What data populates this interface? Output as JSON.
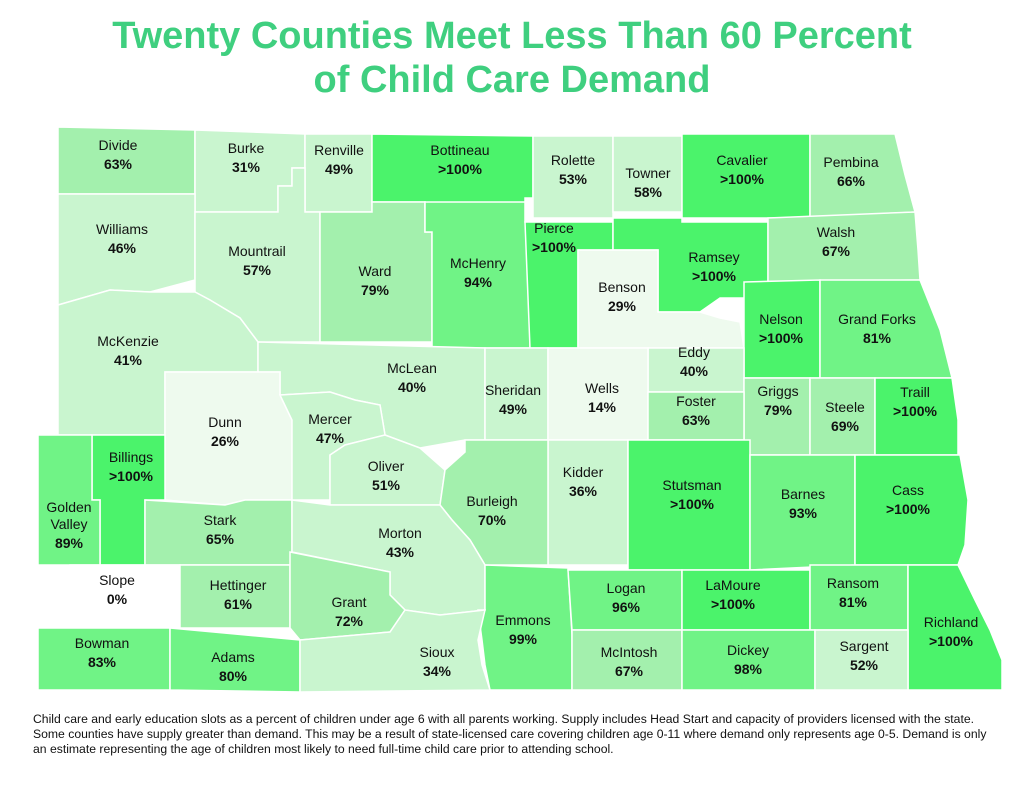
{
  "title": {
    "line1": "Twenty Counties Meet Less Than 60 Percent",
    "line2": "of Child Care Demand"
  },
  "colors": {
    "title": "#3fcf7f",
    "scale": {
      "0": "#ffffff",
      "<30": "#eefaee",
      "30-59": "#c9f5cf",
      "60-79": "#a3f0ad",
      "80-99": "#70f386",
      ">=100": "#4bf36b"
    }
  },
  "counties": [
    {
      "name": "Divide",
      "value": "63%"
    },
    {
      "name": "Burke",
      "value": "31%"
    },
    {
      "name": "Renville",
      "value": "49%"
    },
    {
      "name": "Bottineau",
      "value": ">100%"
    },
    {
      "name": "Rolette",
      "value": "53%"
    },
    {
      "name": "Towner",
      "value": "58%"
    },
    {
      "name": "Cavalier",
      "value": ">100%"
    },
    {
      "name": "Pembina",
      "value": "66%"
    },
    {
      "name": "Williams",
      "value": "46%"
    },
    {
      "name": "Mountrail",
      "value": "57%"
    },
    {
      "name": "Ward",
      "value": "79%"
    },
    {
      "name": "McHenry",
      "value": "94%"
    },
    {
      "name": "Pierce",
      "value": ">100%"
    },
    {
      "name": "Ramsey",
      "value": ">100%"
    },
    {
      "name": "Walsh",
      "value": "67%"
    },
    {
      "name": "Benson",
      "value": "29%"
    },
    {
      "name": "McKenzie",
      "value": "41%"
    },
    {
      "name": "Nelson",
      "value": ">100%"
    },
    {
      "name": "Grand Forks",
      "value": "81%"
    },
    {
      "name": "McLean",
      "value": "40%"
    },
    {
      "name": "Eddy",
      "value": "40%"
    },
    {
      "name": "Sheridan",
      "value": "49%"
    },
    {
      "name": "Wells",
      "value": "14%"
    },
    {
      "name": "Dunn",
      "value": "26%"
    },
    {
      "name": "Mercer",
      "value": "47%"
    },
    {
      "name": "Griggs",
      "value": "79%"
    },
    {
      "name": "Steele",
      "value": "69%"
    },
    {
      "name": "Traill",
      "value": ">100%"
    },
    {
      "name": "Foster",
      "value": "63%"
    },
    {
      "name": "Billings",
      "value": ">100%"
    },
    {
      "name": "Oliver",
      "value": "51%"
    },
    {
      "name": "Kidder",
      "value": "36%"
    },
    {
      "name": "Burleigh",
      "value": "70%"
    },
    {
      "name": "Stutsman",
      "value": ">100%"
    },
    {
      "name": "Barnes",
      "value": "93%"
    },
    {
      "name": "Cass",
      "value": ">100%"
    },
    {
      "name": "Golden Valley",
      "value": "89%"
    },
    {
      "name": "Stark",
      "value": "65%"
    },
    {
      "name": "Morton",
      "value": "43%"
    },
    {
      "name": "Slope",
      "value": "0%"
    },
    {
      "name": "Hettinger",
      "value": "61%"
    },
    {
      "name": "Grant",
      "value": "72%"
    },
    {
      "name": "Emmons",
      "value": "99%"
    },
    {
      "name": "Logan",
      "value": "96%"
    },
    {
      "name": "LaMoure",
      "value": ">100%"
    },
    {
      "name": "Ransom",
      "value": "81%"
    },
    {
      "name": "Richland",
      "value": ">100%"
    },
    {
      "name": "Bowman",
      "value": "83%"
    },
    {
      "name": "Adams",
      "value": "80%"
    },
    {
      "name": "Sioux",
      "value": "34%"
    },
    {
      "name": "McIntosh",
      "value": "67%"
    },
    {
      "name": "Dickey",
      "value": "98%"
    },
    {
      "name": "Sargent",
      "value": "52%"
    }
  ],
  "footnote": "Child care and early education slots as a percent of children under age 6 with all parents working. Supply includes Head Start and capacity of providers licensed with the state. Some counties have supply greater than demand. This may be a result of state-licensed care covering children age 0-11 where demand only represents age 0-5. Demand is only an estimate representing the age of children most likely to need full-time child care prior to attending school."
}
